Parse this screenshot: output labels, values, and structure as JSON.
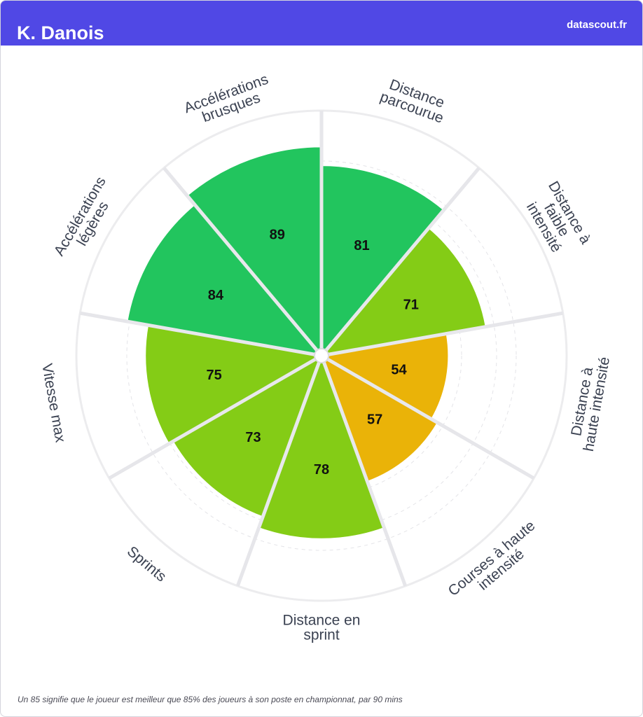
{
  "header": {
    "player_name": "K. Danois",
    "brand": "datascout.fr"
  },
  "footnote": "Un 85 signifie que le joueur est meilleur que 85% des joueurs à son poste en championnat, par 90 mins",
  "colors": {
    "header_bg": "#5048e5",
    "high": "#22c55e",
    "mid": "#84cc16",
    "low": "#eab308"
  },
  "chart_data": {
    "type": "polar-bar",
    "title": "",
    "rmax": 100,
    "categories": [
      {
        "label": "Distance\nparcourue",
        "value": 81,
        "color": "#22c55e"
      },
      {
        "label": "Distance à\nfaible\nintensité",
        "value": 71,
        "color": "#84cc16"
      },
      {
        "label": "Distance à\nhaute intensité",
        "value": 54,
        "color": "#eab308"
      },
      {
        "label": "Courses à haute\nintensité",
        "value": 57,
        "color": "#eab308"
      },
      {
        "label": "Distance en\nsprint",
        "value": 78,
        "color": "#84cc16"
      },
      {
        "label": "Sprints",
        "value": 73,
        "color": "#84cc16"
      },
      {
        "label": "Vitesse max",
        "value": 75,
        "color": "#84cc16"
      },
      {
        "label": "Accélérations\nlégères",
        "value": 84,
        "color": "#22c55e"
      },
      {
        "label": "Accélérations\nbrusques",
        "value": 89,
        "color": "#22c55e"
      }
    ]
  }
}
